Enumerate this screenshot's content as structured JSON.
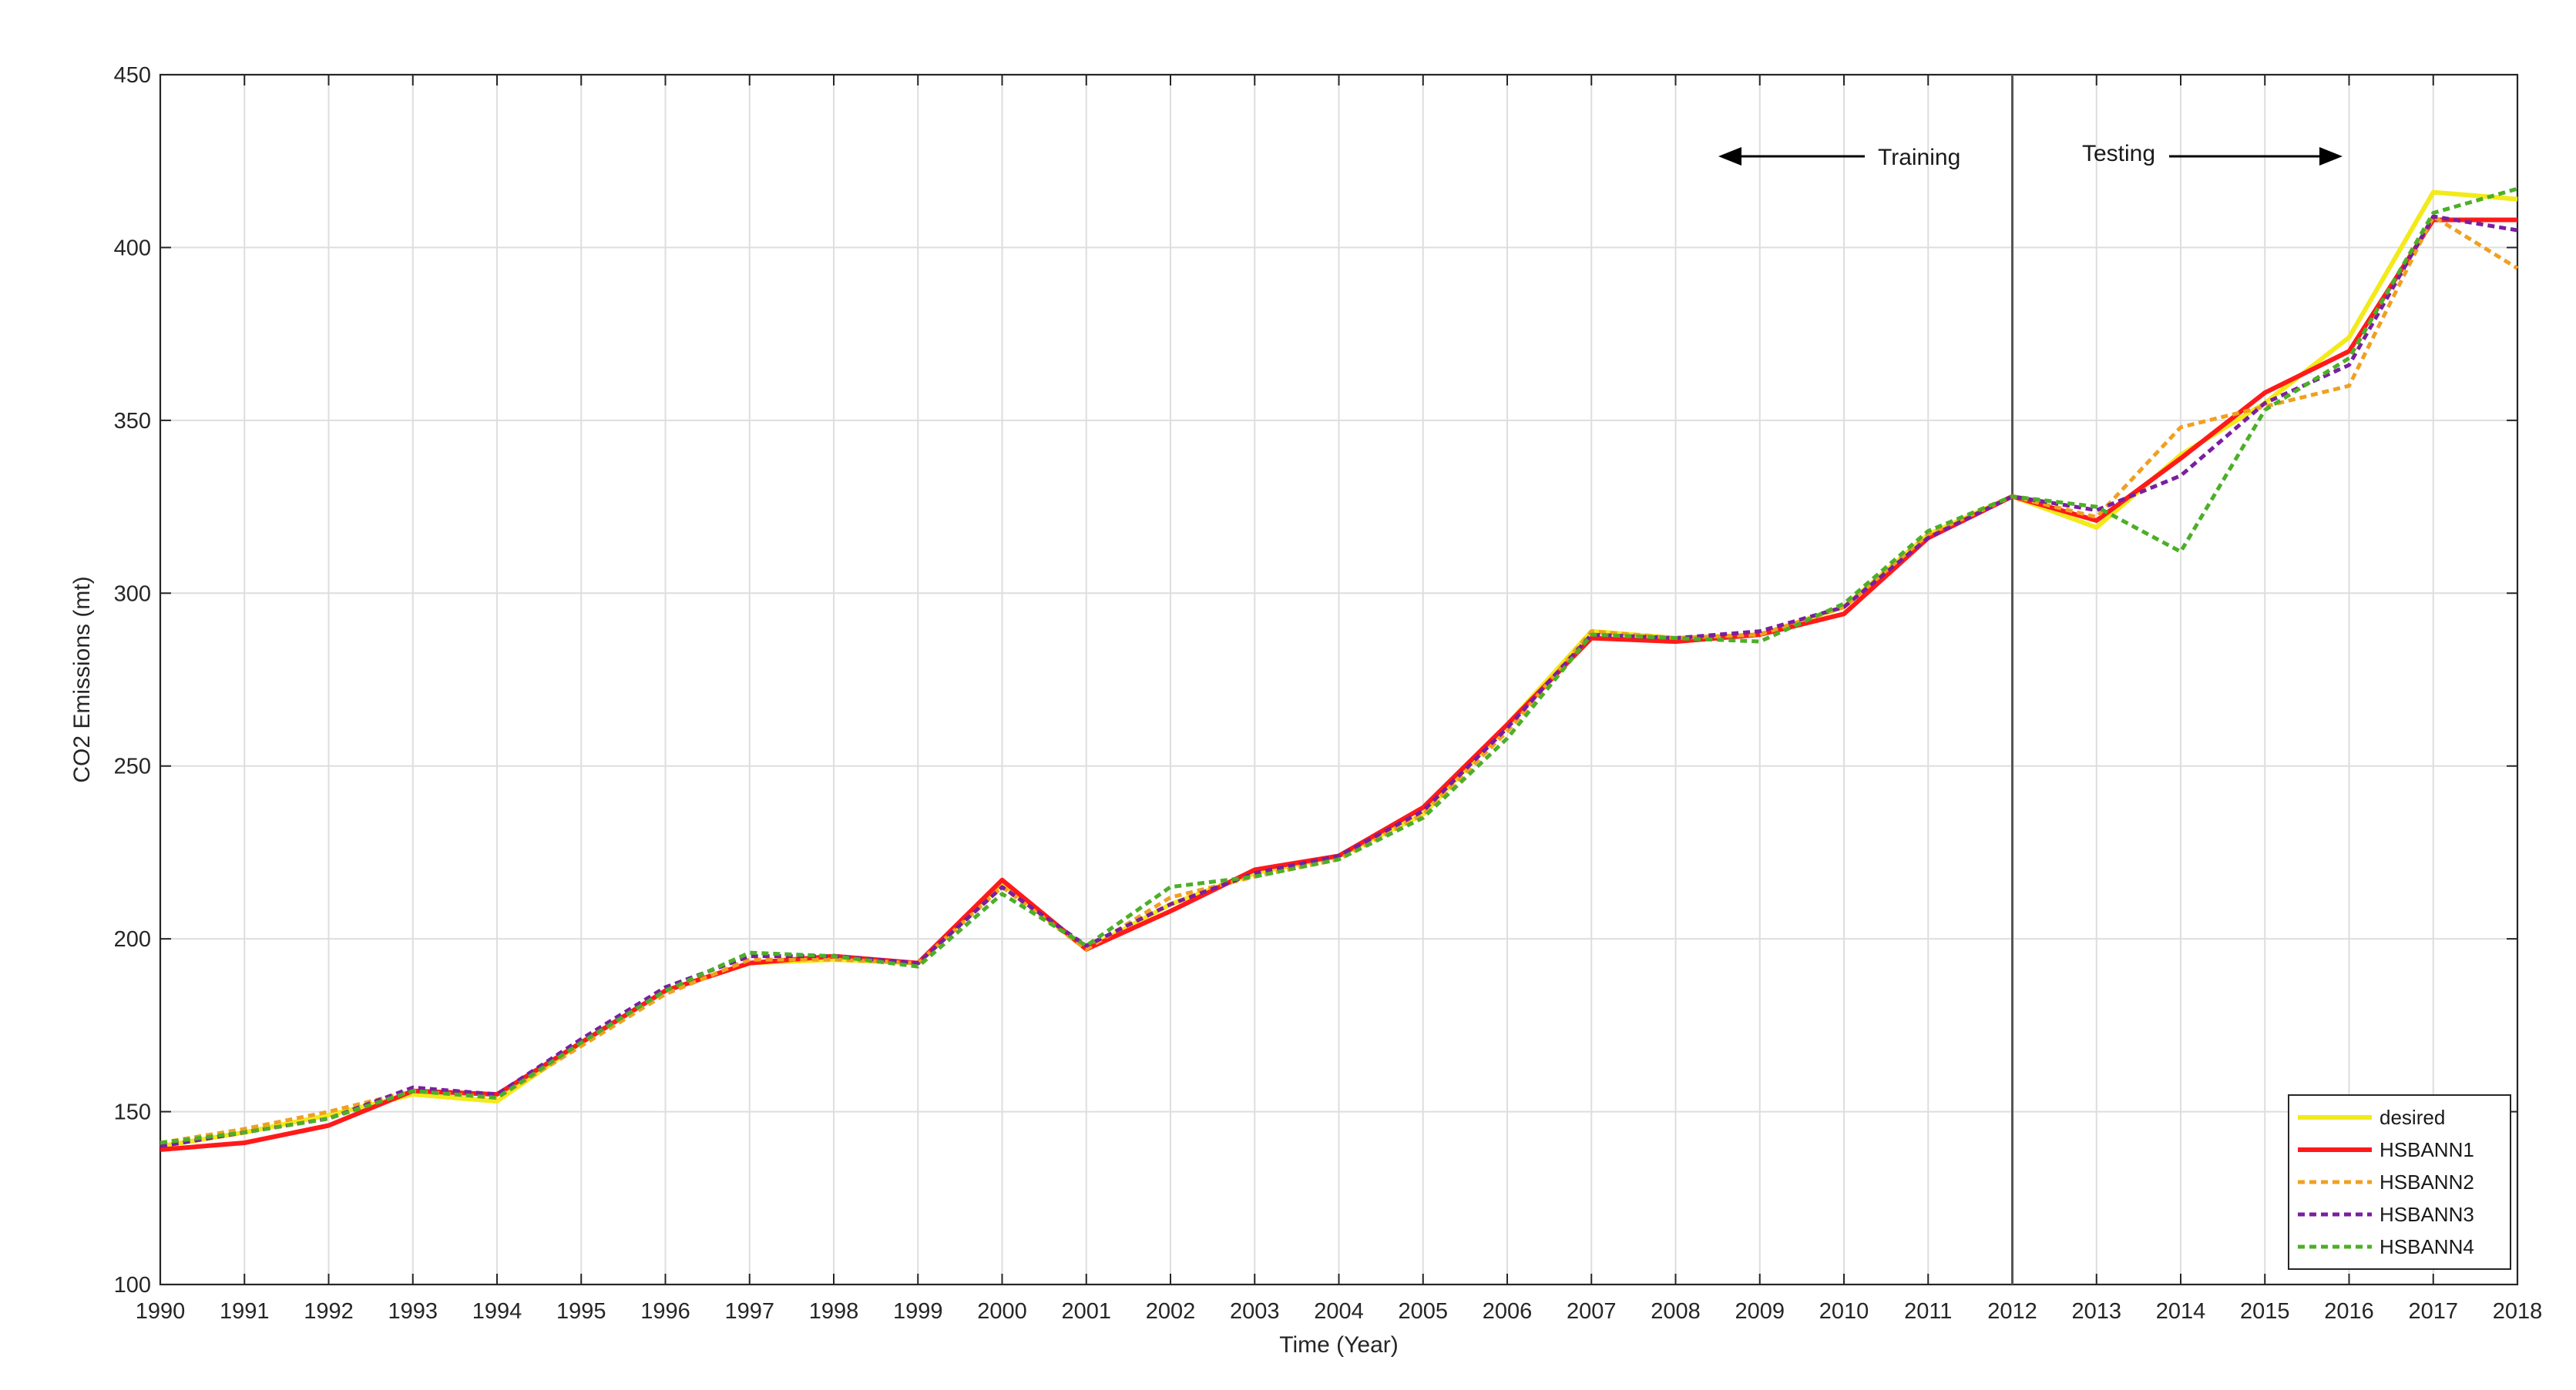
{
  "chart_data": {
    "type": "line",
    "title": "",
    "xlabel": "Time (Year)",
    "ylabel": "CO2 Emissions (mt)",
    "xlim": [
      1990,
      2018
    ],
    "ylim": [
      100,
      450
    ],
    "xticks": [
      "1990",
      "1991",
      "1992",
      "1993",
      "1994",
      "1995",
      "1996",
      "1997",
      "1998",
      "1999",
      "2000",
      "2001",
      "2002",
      "2003",
      "2004",
      "2005",
      "2006",
      "2007",
      "2008",
      "2009",
      "2010",
      "2011",
      "2012",
      "2013",
      "2014",
      "2015",
      "2016",
      "2017",
      "2018"
    ],
    "yticks": [
      "100",
      "150",
      "200",
      "250",
      "300",
      "350",
      "400",
      "450"
    ],
    "grid": true,
    "legend_position": "bottom-right",
    "x": [
      1990,
      1991,
      1992,
      1993,
      1994,
      1995,
      1996,
      1997,
      1998,
      1999,
      2000,
      2001,
      2002,
      2003,
      2004,
      2005,
      2006,
      2007,
      2008,
      2009,
      2010,
      2011,
      2012,
      2013,
      2014,
      2015,
      2016,
      2017,
      2018
    ],
    "series": [
      {
        "name": "desired",
        "color": "#f2ea1a",
        "style": "solid",
        "values": [
          140,
          144,
          149,
          155,
          153,
          170,
          185,
          193,
          194,
          193,
          216,
          197,
          210,
          219,
          224,
          236,
          262,
          289,
          287,
          288,
          296,
          317,
          328,
          319,
          340,
          355,
          374,
          416,
          414
        ]
      },
      {
        "name": "HSBANN1",
        "color": "#ff1a1a",
        "style": "solid",
        "values": [
          139,
          141,
          146,
          156,
          155,
          170,
          185,
          193,
          195,
          193,
          217,
          197,
          208,
          220,
          224,
          238,
          262,
          287,
          286,
          288,
          294,
          316,
          328,
          321,
          339,
          358,
          370,
          408,
          408
        ]
      },
      {
        "name": "HSBANN2",
        "color": "#f0a020",
        "style": "dotted",
        "values": [
          141,
          145,
          150,
          156,
          154,
          169,
          184,
          194,
          194,
          193,
          215,
          197,
          212,
          218,
          223,
          236,
          260,
          289,
          287,
          288,
          296,
          317,
          328,
          322,
          348,
          354,
          360,
          409,
          394
        ]
      },
      {
        "name": "HSBANN3",
        "color": "#7a1fa0",
        "style": "dotted",
        "values": [
          140,
          144,
          148,
          157,
          155,
          171,
          186,
          195,
          195,
          193,
          215,
          198,
          210,
          219,
          224,
          237,
          261,
          288,
          287,
          289,
          296,
          316,
          328,
          324,
          334,
          355,
          366,
          409,
          405
        ]
      },
      {
        "name": "HSBANN4",
        "color": "#4caf28",
        "style": "dotted",
        "values": [
          141,
          144,
          148,
          156,
          154,
          170,
          185,
          196,
          195,
          192,
          213,
          198,
          215,
          218,
          223,
          235,
          258,
          288,
          287,
          286,
          297,
          318,
          328,
          325,
          312,
          353,
          368,
          410,
          417
        ]
      }
    ],
    "annotations": {
      "divider_year": 2012,
      "training_label": "Training",
      "testing_label": "Testing"
    }
  }
}
